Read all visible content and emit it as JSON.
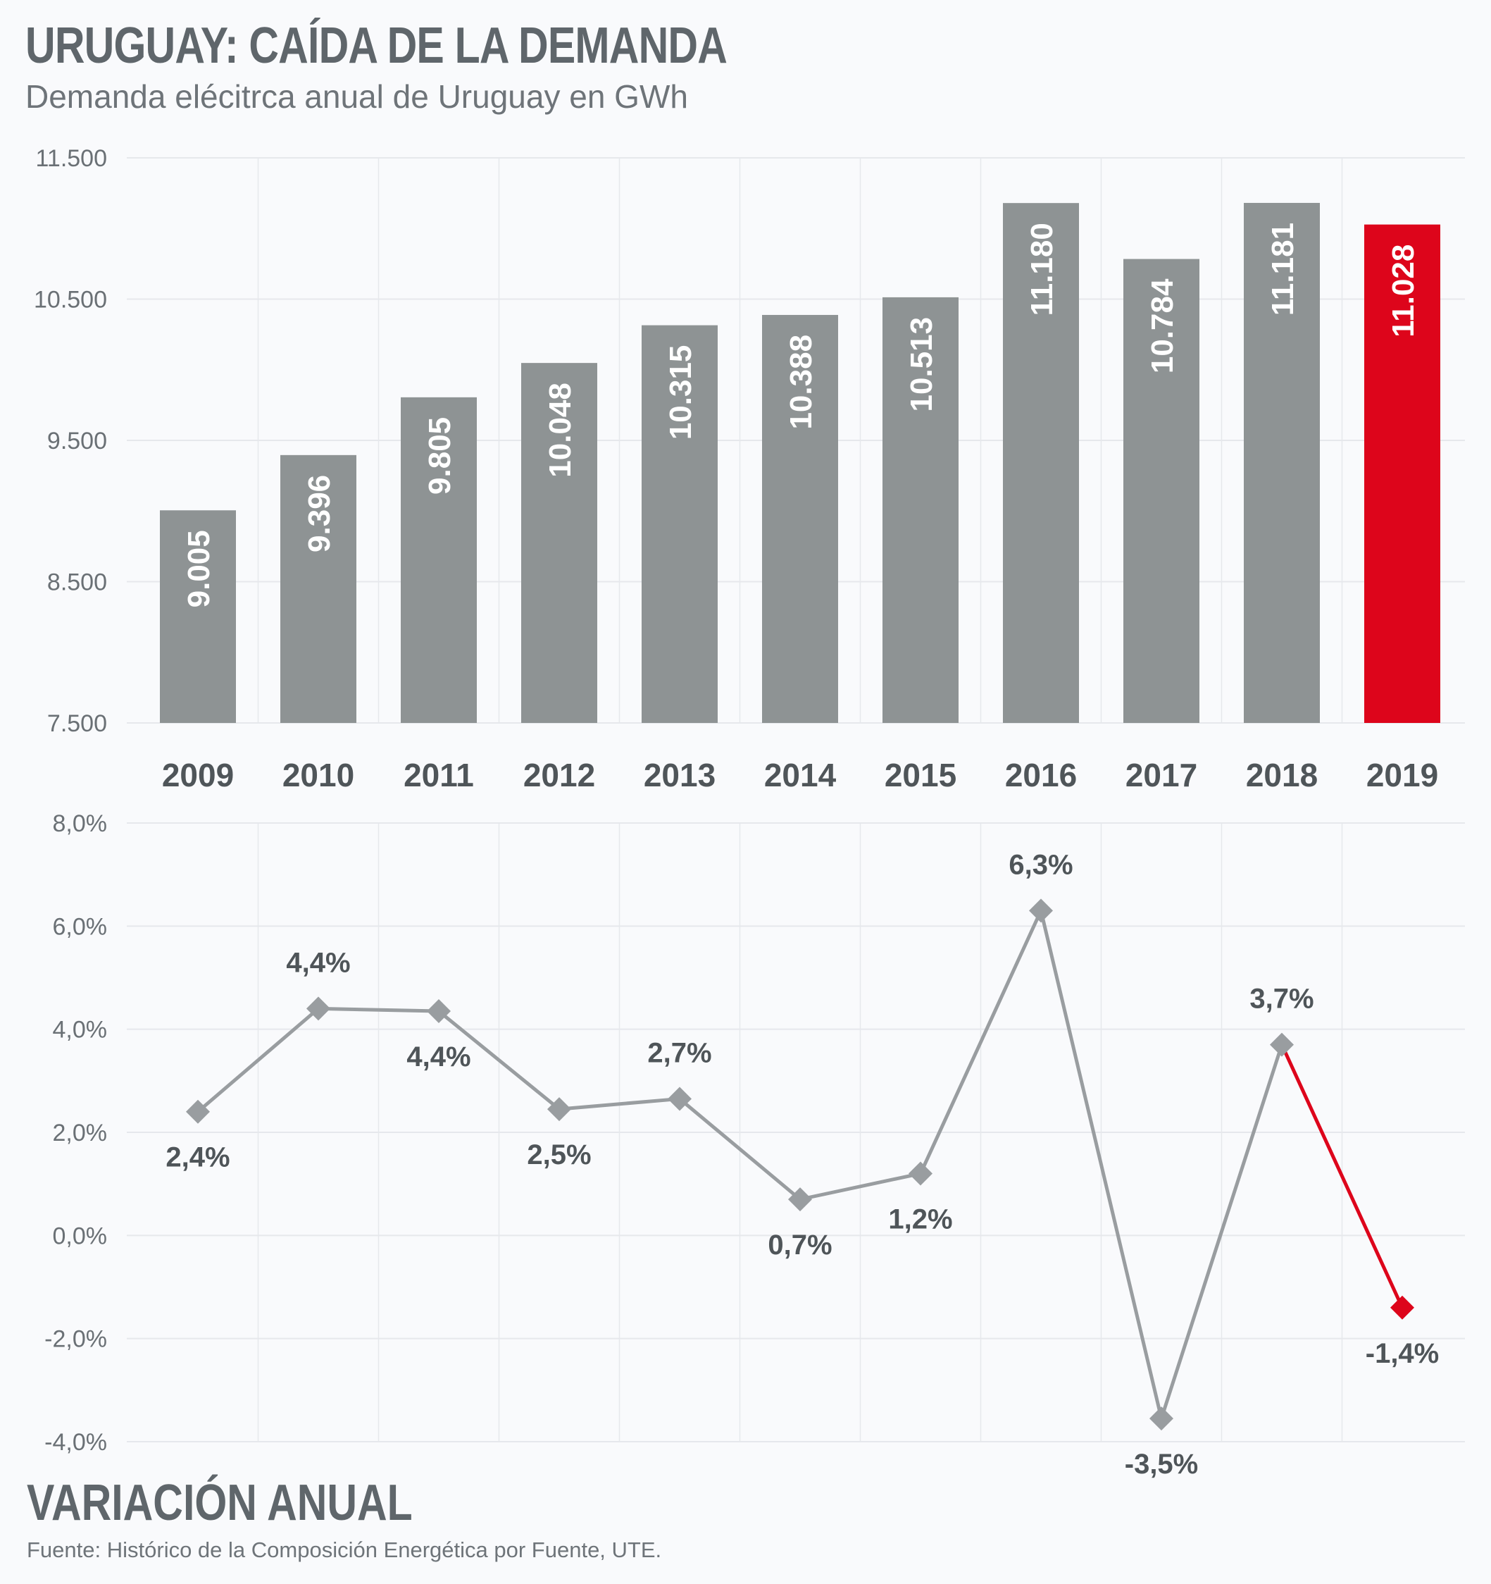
{
  "header": {
    "title": "URUGUAY: CAÍDA DE LA DEMANDA",
    "subtitle": "Demanda elécitrca anual de Uruguay en GWh"
  },
  "footer": {
    "section_title": "VARIACIÓN ANUAL",
    "source": "Fuente: Histórico de la Composición Energética por Fuente, UTE."
  },
  "colors": {
    "bar": "#8e9394",
    "highlight": "#dd051b",
    "line": "#999da0",
    "grid": "#e6e8ec"
  },
  "chart_data": [
    {
      "type": "bar",
      "categories": [
        "2009",
        "2010",
        "2011",
        "2012",
        "2013",
        "2014",
        "2015",
        "2016",
        "2017",
        "2018",
        "2019"
      ],
      "values": [
        9005,
        9396,
        9805,
        10048,
        10315,
        10388,
        10513,
        11180,
        10784,
        11181,
        11028
      ],
      "value_labels": [
        "9.005",
        "9.396",
        "9.805",
        "10.048",
        "10.315",
        "10.388",
        "10.513",
        "11.180",
        "10.784",
        "11.181",
        "11.028"
      ],
      "highlight_index": 10,
      "ylim": [
        7500,
        11500
      ],
      "yticks": [
        7500,
        8500,
        9500,
        10500,
        11500
      ],
      "ytick_labels": [
        "7.500",
        "8.500",
        "9.500",
        "10.500",
        "11.500"
      ],
      "grid": true
    },
    {
      "type": "line",
      "categories": [
        "2009",
        "2010",
        "2011",
        "2012",
        "2013",
        "2014",
        "2015",
        "2016",
        "2017",
        "2018",
        "2019"
      ],
      "values": [
        2.4,
        4.4,
        4.35,
        2.45,
        2.65,
        0.7,
        1.2,
        6.3,
        -3.55,
        3.7,
        -1.4
      ],
      "value_labels": [
        "2,4%",
        "4,4%",
        "4,4%",
        "2,5%",
        "2,7%",
        "0,7%",
        "1,2%",
        "6,3%",
        "-3,5%",
        "3,7%",
        "-1,4%"
      ],
      "label_positions": [
        "below",
        "above",
        "below",
        "below",
        "above",
        "below",
        "below",
        "above",
        "below",
        "above",
        "below"
      ],
      "highlight_index": 10,
      "ylim": [
        -4,
        8
      ],
      "yticks": [
        -4,
        -2,
        0,
        2,
        4,
        6,
        8
      ],
      "ytick_labels": [
        "-4,0%",
        "-2,0%",
        "0,0%",
        "2,0%",
        "4,0%",
        "6,0%",
        "8,0%"
      ],
      "grid": true
    }
  ]
}
